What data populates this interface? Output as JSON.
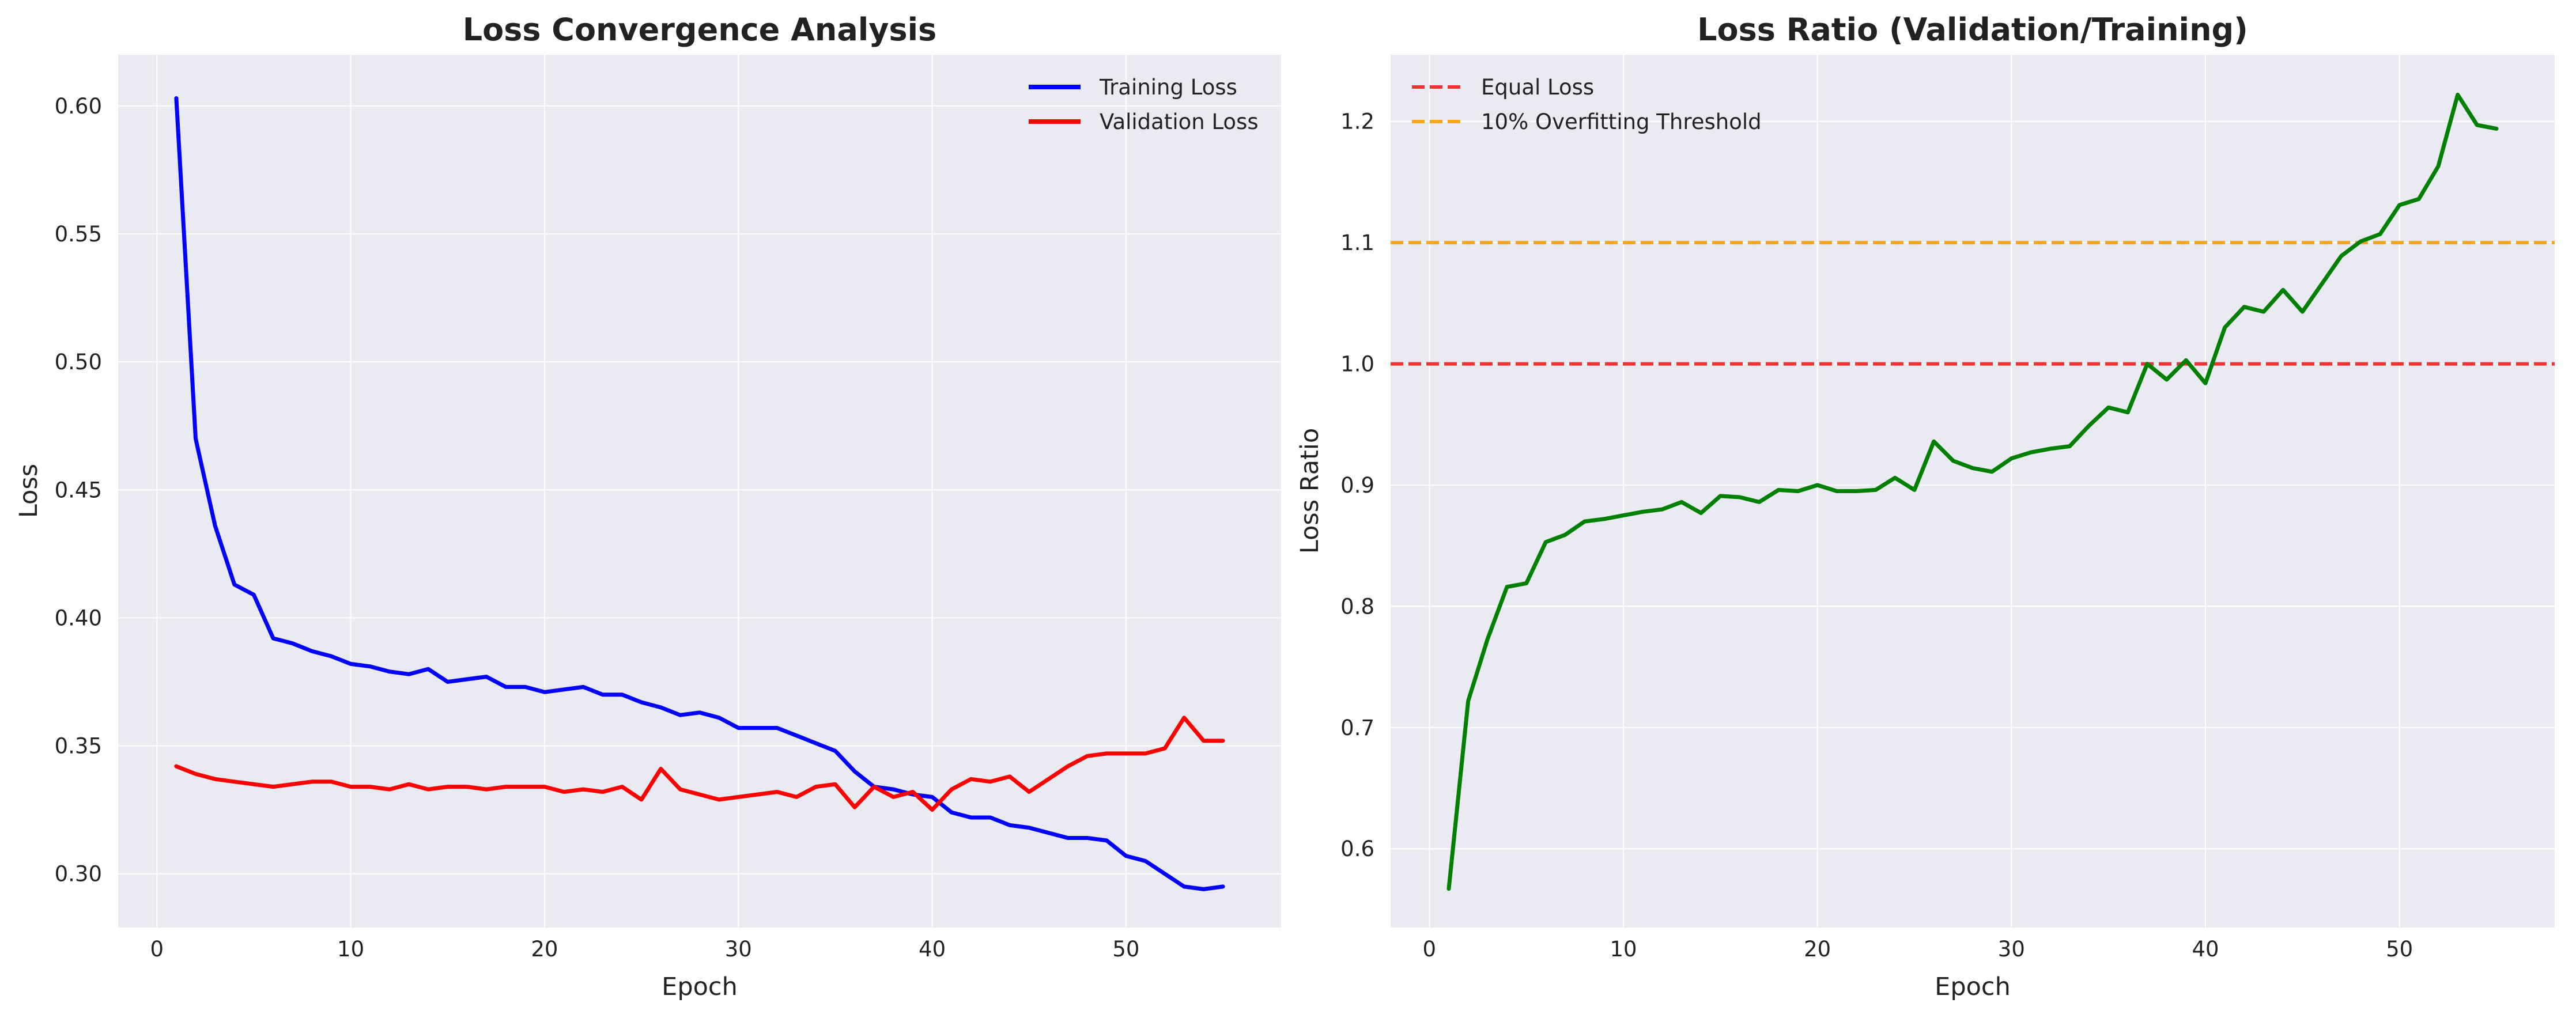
{
  "figure": {
    "background": "#ffffff",
    "plot_background": "#eaeaf2"
  },
  "chart_data": [
    {
      "type": "line",
      "title": "Loss Convergence Analysis",
      "xlabel": "Epoch",
      "ylabel": "Loss",
      "xlim": [
        -2,
        58
      ],
      "ylim": [
        0.279,
        0.62
      ],
      "xticks": [
        0,
        10,
        20,
        30,
        40,
        50
      ],
      "yticks": [
        0.3,
        0.35,
        0.4,
        0.45,
        0.5,
        0.55,
        0.6
      ],
      "ytick_decimals": 2,
      "grid": true,
      "legend_position": "upper-right",
      "x": [
        1,
        2,
        3,
        4,
        5,
        6,
        7,
        8,
        9,
        10,
        11,
        12,
        13,
        14,
        15,
        16,
        17,
        18,
        19,
        20,
        21,
        22,
        23,
        24,
        25,
        26,
        27,
        28,
        29,
        30,
        31,
        32,
        33,
        34,
        35,
        36,
        37,
        38,
        39,
        40,
        41,
        42,
        43,
        44,
        45,
        46,
        47,
        48,
        49,
        50,
        51,
        52,
        53,
        54,
        55
      ],
      "series": [
        {
          "name": "Training Loss",
          "color": "#0000ff",
          "values": [
            0.603,
            0.47,
            0.436,
            0.413,
            0.409,
            0.392,
            0.39,
            0.387,
            0.385,
            0.382,
            0.381,
            0.379,
            0.378,
            0.38,
            0.375,
            0.376,
            0.377,
            0.373,
            0.373,
            0.371,
            0.372,
            0.373,
            0.37,
            0.37,
            0.367,
            0.365,
            0.362,
            0.363,
            0.361,
            0.357,
            0.357,
            0.357,
            0.354,
            0.351,
            0.348,
            0.34,
            0.334,
            0.333,
            0.331,
            0.33,
            0.324,
            0.322,
            0.322,
            0.319,
            0.318,
            0.316,
            0.314,
            0.314,
            0.313,
            0.307,
            0.305,
            0.3,
            0.295,
            0.294,
            0.295
          ]
        },
        {
          "name": "Validation Loss",
          "color": "#ff0000",
          "values": [
            0.342,
            0.339,
            0.337,
            0.336,
            0.335,
            0.334,
            0.335,
            0.336,
            0.336,
            0.334,
            0.334,
            0.333,
            0.335,
            0.333,
            0.334,
            0.334,
            0.333,
            0.334,
            0.334,
            0.334,
            0.332,
            0.333,
            0.332,
            0.334,
            0.329,
            0.341,
            0.333,
            0.331,
            0.329,
            0.33,
            0.331,
            0.332,
            0.33,
            0.334,
            0.335,
            0.326,
            0.334,
            0.33,
            0.332,
            0.325,
            0.333,
            0.337,
            0.336,
            0.338,
            0.332,
            0.337,
            0.342,
            0.346,
            0.347,
            0.347,
            0.347,
            0.349,
            0.361,
            0.352,
            0.352
          ]
        }
      ]
    },
    {
      "type": "line",
      "title": "Loss Ratio (Validation/Training)",
      "xlabel": "Epoch",
      "ylabel": "Loss Ratio",
      "xlim": [
        -2,
        58
      ],
      "ylim": [
        0.535,
        1.255
      ],
      "xticks": [
        0,
        10,
        20,
        30,
        40,
        50
      ],
      "yticks": [
        0.6,
        0.7,
        0.8,
        0.9,
        1.0,
        1.1,
        1.2
      ],
      "ytick_decimals": 1,
      "grid": true,
      "legend_position": "upper-left",
      "x": [
        1,
        2,
        3,
        4,
        5,
        6,
        7,
        8,
        9,
        10,
        11,
        12,
        13,
        14,
        15,
        16,
        17,
        18,
        19,
        20,
        21,
        22,
        23,
        24,
        25,
        26,
        27,
        28,
        29,
        30,
        31,
        32,
        33,
        34,
        35,
        36,
        37,
        38,
        39,
        40,
        41,
        42,
        43,
        44,
        45,
        46,
        47,
        48,
        49,
        50,
        51,
        52,
        53,
        54,
        55
      ],
      "series": [
        {
          "name": "",
          "color": "#008000",
          "values": [
            0.567,
            0.722,
            0.773,
            0.816,
            0.819,
            0.853,
            0.859,
            0.87,
            0.872,
            0.875,
            0.878,
            0.88,
            0.886,
            0.877,
            0.891,
            0.89,
            0.886,
            0.896,
            0.895,
            0.9,
            0.895,
            0.895,
            0.896,
            0.906,
            0.896,
            0.936,
            0.92,
            0.914,
            0.911,
            0.922,
            0.927,
            0.93,
            0.932,
            0.949,
            0.964,
            0.96,
            1.0,
            0.987,
            1.003,
            0.984,
            1.03,
            1.047,
            1.043,
            1.061,
            1.043,
            1.066,
            1.089,
            1.101,
            1.107,
            1.131,
            1.136,
            1.163,
            1.222,
            1.197,
            1.194
          ]
        }
      ],
      "reference_lines": [
        {
          "name": "Equal Loss",
          "y": 1.0,
          "color": "#ee3333"
        },
        {
          "name": "10% Overfitting Threshold",
          "y": 1.1,
          "color": "#f5a623"
        }
      ]
    }
  ]
}
